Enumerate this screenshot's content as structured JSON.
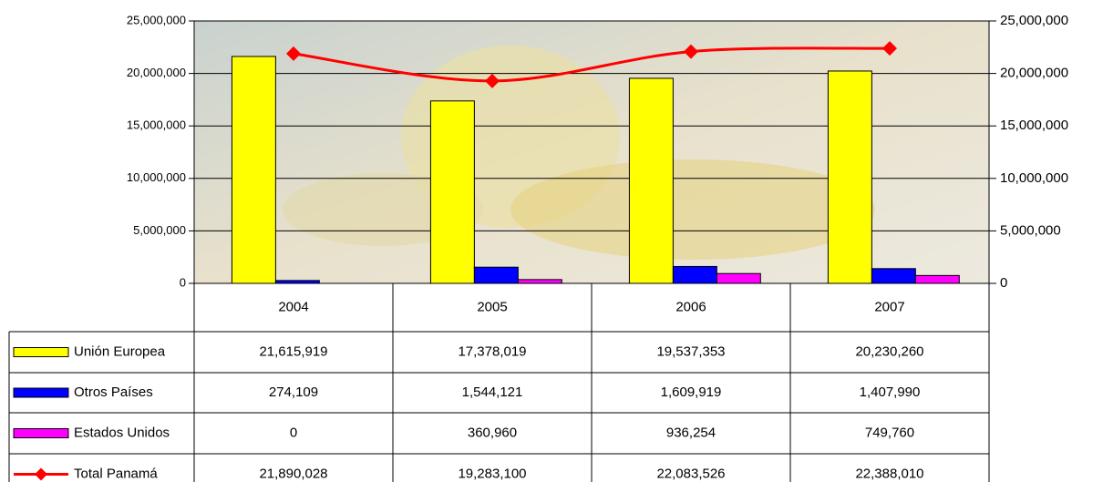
{
  "chart_data": {
    "type": "bar",
    "categories": [
      "2004",
      "2005",
      "2006",
      "2007"
    ],
    "series": [
      {
        "name": "Unión Europea",
        "color": "#ffff00",
        "values": [
          21615919,
          17378019,
          19537353,
          20230260
        ],
        "value_labels": [
          "21,615,919",
          "17,378,019",
          "19,537,353",
          "20,230,260"
        ]
      },
      {
        "name": "Otros Países",
        "color": "#0000ff",
        "values": [
          274109,
          1544121,
          1609919,
          1407990
        ],
        "value_labels": [
          "274,109",
          "1,544,121",
          "1,609,919",
          "1,407,990"
        ]
      },
      {
        "name": "Estados Unidos",
        "color": "#ff00ff",
        "values": [
          0,
          360960,
          936254,
          749760
        ],
        "value_labels": [
          "0",
          "360,960",
          "936,254",
          "749,760"
        ]
      },
      {
        "name": "Total Panamá",
        "type": "line",
        "axis": "y2",
        "color": "#ff0000",
        "values": [
          21890028,
          19283100,
          22083526,
          22388010
        ],
        "value_labels": [
          "21,890,028",
          "19,283,100",
          "22,083,526",
          "22,388,010"
        ]
      }
    ],
    "ylim": [
      0,
      25000000
    ],
    "yticks": [
      0,
      {
        "value": 5000000,
        "label": "5,000,000"
      },
      {
        "value": 10000000,
        "label": "10,000,000"
      },
      {
        "value": 15000000,
        "label": "15,000,000"
      },
      {
        "value": 20000000,
        "label": "20,000,000"
      },
      {
        "value": 25000000,
        "label": "25,000,000"
      }
    ],
    "y2lim": [
      0,
      25000000
    ],
    "y2ticks": [
      0,
      {
        "value": 5000000,
        "label": "5,000,000"
      },
      {
        "value": 10000000,
        "label": "10,000,000"
      },
      {
        "value": 15000000,
        "label": "15,000,000"
      },
      {
        "value": 20000000,
        "label": "20,000,000"
      },
      {
        "value": 25000000,
        "label": "25,000,000"
      }
    ],
    "grid": true
  }
}
